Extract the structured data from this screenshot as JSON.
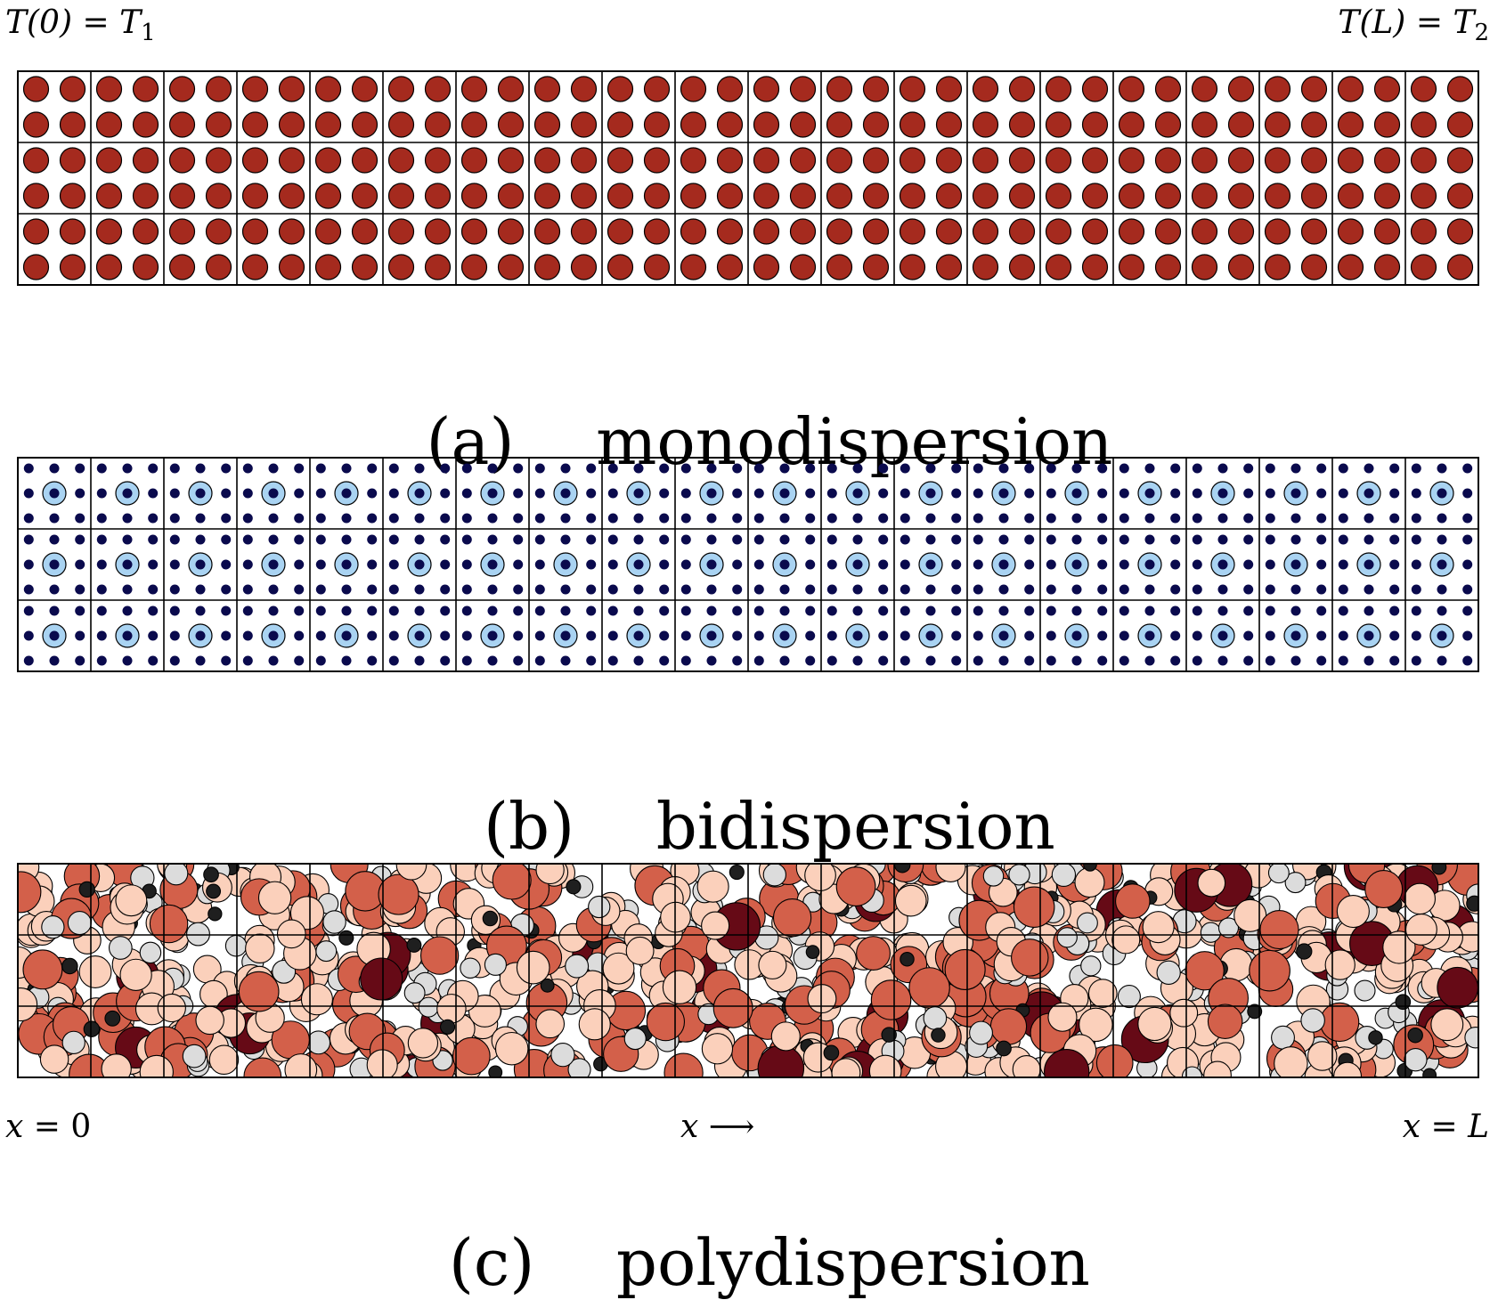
{
  "boundary": {
    "left_lhs": "T(0)",
    "left_eq": "=",
    "left_rhs_letter": "T",
    "left_rhs_sub": "1",
    "right_lhs": "T(L)",
    "right_eq": "=",
    "right_rhs_letter": "T",
    "right_rhs_sub": "2"
  },
  "panels": [
    {
      "label": "(a)",
      "name": "monodispersion",
      "columns": 20,
      "rows": 3,
      "type": "mono",
      "colors": {
        "particle": "#a52a1e"
      }
    },
    {
      "label": "(b)",
      "name": "bidispersion",
      "columns": 20,
      "rows": 3,
      "type": "bi",
      "colors": {
        "small": "#0a0a4d",
        "large_ring": "#a9d3f2",
        "large_core": "#0a0a4d"
      }
    },
    {
      "label": "(c)",
      "name": "polydispersion",
      "columns": 20,
      "rows": 3,
      "type": "poly",
      "colors": {
        "size_palette": [
          "#1f1f1f",
          "#dcdcdc",
          "#fbd0bb",
          "#d3604a",
          "#660a16"
        ]
      }
    }
  ],
  "axis": {
    "start_lhs": "x",
    "start_eq": "=",
    "start_rhs": "0",
    "arrow_var": "x",
    "arrow_glyph": "⟶",
    "end_lhs": "x",
    "end_eq": "=",
    "end_rhs": "L"
  }
}
